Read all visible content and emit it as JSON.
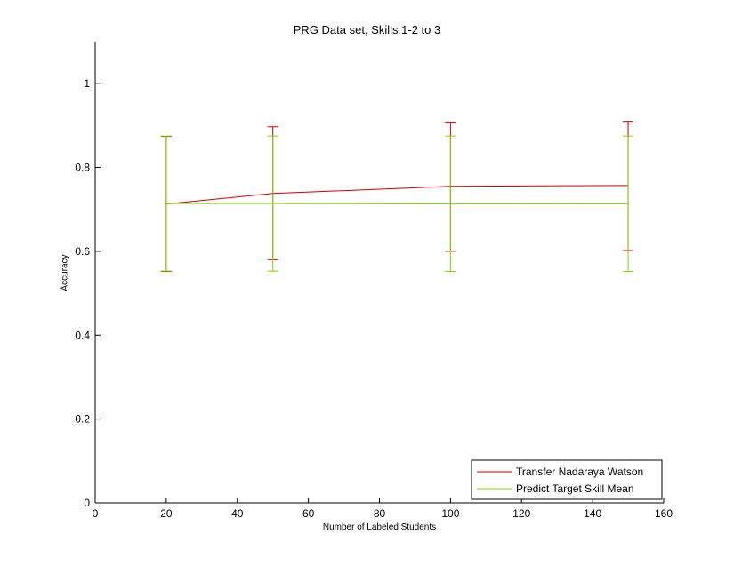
{
  "chart_data": {
    "type": "line",
    "title": "PRG Data set, Skills 1-2 to 3",
    "xlabel": "Number of Labeled Students",
    "ylabel": "Accuracy",
    "xlim": [
      0,
      160
    ],
    "ylim": [
      0,
      1.1
    ],
    "xticks": [
      0,
      20,
      40,
      60,
      80,
      100,
      120,
      140,
      160
    ],
    "yticks": [
      0,
      0.2,
      0.4,
      0.6,
      0.8,
      1
    ],
    "ytick_labels": [
      "0",
      "0.2",
      "0.4",
      "0.6",
      "0.8",
      "1"
    ],
    "grid": false,
    "legend_position": "bottom-right",
    "x": [
      20,
      50,
      100,
      150
    ],
    "series": [
      {
        "name": "Transfer Nadaraya Watson",
        "color": "#cc0000",
        "values": [
          0.713,
          0.738,
          0.755,
          0.757
        ],
        "error_low": [
          0.552,
          0.58,
          0.6,
          0.602
        ],
        "error_high": [
          0.874,
          0.897,
          0.908,
          0.91
        ]
      },
      {
        "name": "Predict Target Skill Mean",
        "color": "#7fd400",
        "values": [
          0.714,
          0.714,
          0.713,
          0.713
        ],
        "error_low": [
          0.553,
          0.553,
          0.552,
          0.552
        ],
        "error_high": [
          0.875,
          0.875,
          0.875,
          0.875
        ]
      }
    ]
  }
}
